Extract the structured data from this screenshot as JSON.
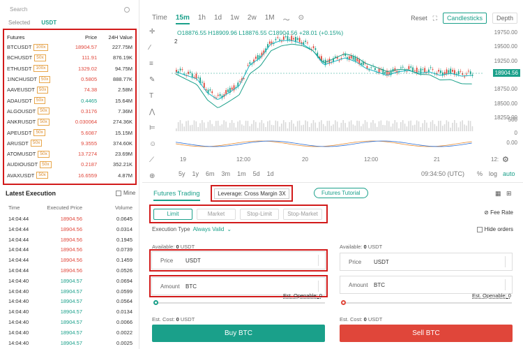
{
  "search": {
    "placeholder": "Search"
  },
  "tabs": {
    "selected": "Selected",
    "usdt": "USDT"
  },
  "futures": {
    "headers": {
      "name": "Futures",
      "price": "Price",
      "change": "24H Value"
    },
    "rows": [
      {
        "name": "BTCUSDT",
        "lev": "100x",
        "price": "18904.57",
        "value": "227.75M",
        "dir": "dn"
      },
      {
        "name": "BCHUSDT",
        "lev": "50x",
        "price": "111.91",
        "value": "876.19K",
        "dir": "dn"
      },
      {
        "name": "ETHUSDT",
        "lev": "100x",
        "price": "1329.02",
        "value": "94.75M",
        "dir": "dn"
      },
      {
        "name": "1INCHUSDT",
        "lev": "50x",
        "price": "0.5805",
        "value": "888.77K",
        "dir": "dn"
      },
      {
        "name": "AAVEUSDT",
        "lev": "50x",
        "price": "74.38",
        "value": "2.58M",
        "dir": "dn"
      },
      {
        "name": "ADAUSDT",
        "lev": "50x",
        "price": "0.4465",
        "value": "15.64M",
        "dir": "up"
      },
      {
        "name": "ALGOUSDT",
        "lev": "50x",
        "price": "0.3176",
        "value": "7.36M",
        "dir": "dn"
      },
      {
        "name": "ANKRUSDT",
        "lev": "50x",
        "price": "0.030064",
        "value": "274.36K",
        "dir": "dn"
      },
      {
        "name": "APEUSDT",
        "lev": "50x",
        "price": "5.6087",
        "value": "15.15M",
        "dir": "dn"
      },
      {
        "name": "ARUSDT",
        "lev": "50x",
        "price": "9.3555",
        "value": "374.60K",
        "dir": "dn"
      },
      {
        "name": "ATOMUSDT",
        "lev": "50x",
        "price": "13.7274",
        "value": "23.69M",
        "dir": "dn"
      },
      {
        "name": "AUDIOUSDT",
        "lev": "50x",
        "price": "0.2187",
        "value": "352.21K",
        "dir": "dn"
      },
      {
        "name": "AVAXUSDT",
        "lev": "50x",
        "price": "16.6559",
        "value": "4.87M",
        "dir": "dn"
      }
    ]
  },
  "latest": {
    "title": "Latest Execution",
    "mine": "Mine",
    "headers": {
      "time": "Time",
      "price": "Executed Price",
      "volume": "Volume"
    },
    "rows": [
      {
        "time": "14:04:44",
        "price": "18904.56",
        "vol": "0.0645",
        "dir": "dn"
      },
      {
        "time": "14:04:44",
        "price": "18904.56",
        "vol": "0.0314",
        "dir": "dn"
      },
      {
        "time": "14:04:44",
        "price": "18904.56",
        "vol": "0.1945",
        "dir": "dn"
      },
      {
        "time": "14:04:44",
        "price": "18904.56",
        "vol": "0.0739",
        "dir": "dn"
      },
      {
        "time": "14:04:44",
        "price": "18904.56",
        "vol": "0.1459",
        "dir": "dn"
      },
      {
        "time": "14:04:44",
        "price": "18904.56",
        "vol": "0.0526",
        "dir": "dn"
      },
      {
        "time": "14:04:40",
        "price": "18904.57",
        "vol": "0.0694",
        "dir": "up"
      },
      {
        "time": "14:04:40",
        "price": "18904.57",
        "vol": "0.0599",
        "dir": "up"
      },
      {
        "time": "14:04:40",
        "price": "18904.57",
        "vol": "0.0564",
        "dir": "up"
      },
      {
        "time": "14:04:40",
        "price": "18904.57",
        "vol": "0.0134",
        "dir": "up"
      },
      {
        "time": "14:04:40",
        "price": "18904.57",
        "vol": "0.0066",
        "dir": "up"
      },
      {
        "time": "14:04:40",
        "price": "18904.57",
        "vol": "0.0022",
        "dir": "up"
      },
      {
        "time": "14:04:40",
        "price": "18904.57",
        "vol": "0.0025",
        "dir": "up"
      }
    ]
  },
  "chart": {
    "intervals": [
      "Time",
      "15m",
      "1h",
      "1d",
      "1w",
      "2w",
      "1M"
    ],
    "selected_interval": "15m",
    "reset": "Reset",
    "candlesticks": "Candlesticks",
    "depth": "Depth",
    "ohlc": "O18876.55 H18909.96 L18876.55 C18904.56 +28.01 (+0.15%)",
    "indicator_count": "2",
    "yticks": [
      "19750.00",
      "19500.00",
      "19250.00",
      "19000.00",
      "18750.00",
      "18500.00",
      "18250.00"
    ],
    "last_price": "18904.56",
    "vol_ticks": [
      "500",
      "0"
    ],
    "macd_tick": "0.00",
    "xticks": [
      "19",
      "12:00",
      "20",
      "12:00",
      "21",
      "12:"
    ],
    "ranges": [
      "5y",
      "1y",
      "6m",
      "3m",
      "1m",
      "5d",
      "1d"
    ],
    "clock": "09:34:50 (UTC)",
    "pct": "%",
    "log": "log",
    "auto": "auto"
  },
  "trade": {
    "tab": "Futures Trading",
    "leverage": "Leverage: Cross Margin 3X",
    "tutorial": "Futures Tutorial",
    "order_types": [
      "Limit",
      "Market",
      "Stop-Limit",
      "Stop-Market"
    ],
    "fee": "Fee Rate",
    "exec_label": "Execution Type",
    "exec_value": "Always Valid",
    "hide_orders": "Hide orders",
    "avail_label": "Available:",
    "avail_value": "0",
    "avail_unit": "USDT",
    "price_label": "Price",
    "price_unit": "USDT",
    "amount_label": "Amount",
    "amount_unit": "BTC",
    "est_open_label": "Est. Openable:",
    "est_open_value": "0",
    "est_cost_label": "Est. Cost:",
    "est_cost_value": "0",
    "est_cost_unit": "USDT",
    "buy": "Buy BTC",
    "sell": "Sell BTC"
  },
  "colors": {
    "accent": "#1aa08a",
    "down": "#e0463a",
    "highlight": "#d21a1a"
  }
}
